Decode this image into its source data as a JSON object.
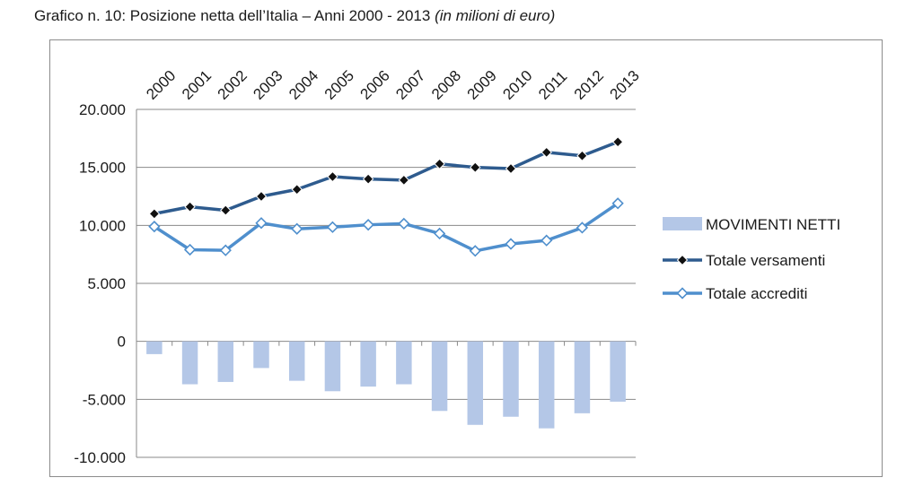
{
  "title": {
    "main": "Grafico n. 10: Posizione netta dell’Italia – Anni 2000 - 2013",
    "unit": "(in milioni di euro)"
  },
  "chart_data": {
    "type": "bar+line",
    "title": "Grafico n. 10: Posizione netta dell’Italia – Anni 2000 - 2013 (in milioni di euro)",
    "categories": [
      "2000",
      "2001",
      "2002",
      "2003",
      "2004",
      "2005",
      "2006",
      "2007",
      "2008",
      "2009",
      "2010",
      "2011",
      "2012",
      "2013"
    ],
    "ylim": [
      -10000,
      20000
    ],
    "yticks": [
      20000,
      15000,
      10000,
      5000,
      0,
      -5000,
      -10000
    ],
    "ytick_labels": [
      "20.000",
      "15.000",
      "10.000",
      "5.000",
      "0",
      "-5.000",
      "-10.000"
    ],
    "grid": true,
    "legend_position": "right",
    "series": [
      {
        "name": "MOVIMENTI NETTI",
        "kind": "bar",
        "color": "#b4c7e7",
        "values": [
          -1100,
          -3700,
          -3500,
          -2300,
          -3400,
          -4300,
          -3900,
          -3700,
          -6000,
          -7200,
          -6500,
          -7500,
          -6200,
          -5200
        ]
      },
      {
        "name": "Totale versamenti",
        "kind": "line",
        "color": "#2e5b8e",
        "marker": "diamond-filled",
        "values": [
          11000,
          11600,
          11300,
          12500,
          13100,
          14200,
          14000,
          13900,
          15300,
          15000,
          14900,
          16300,
          16000,
          17200
        ]
      },
      {
        "name": "Totale accrediti",
        "kind": "line",
        "color": "#4f8fcd",
        "marker": "diamond-hollow",
        "values": [
          9900,
          7900,
          7850,
          10200,
          9700,
          9850,
          10050,
          10150,
          9300,
          7800,
          8400,
          8700,
          9800,
          11900
        ]
      }
    ]
  }
}
